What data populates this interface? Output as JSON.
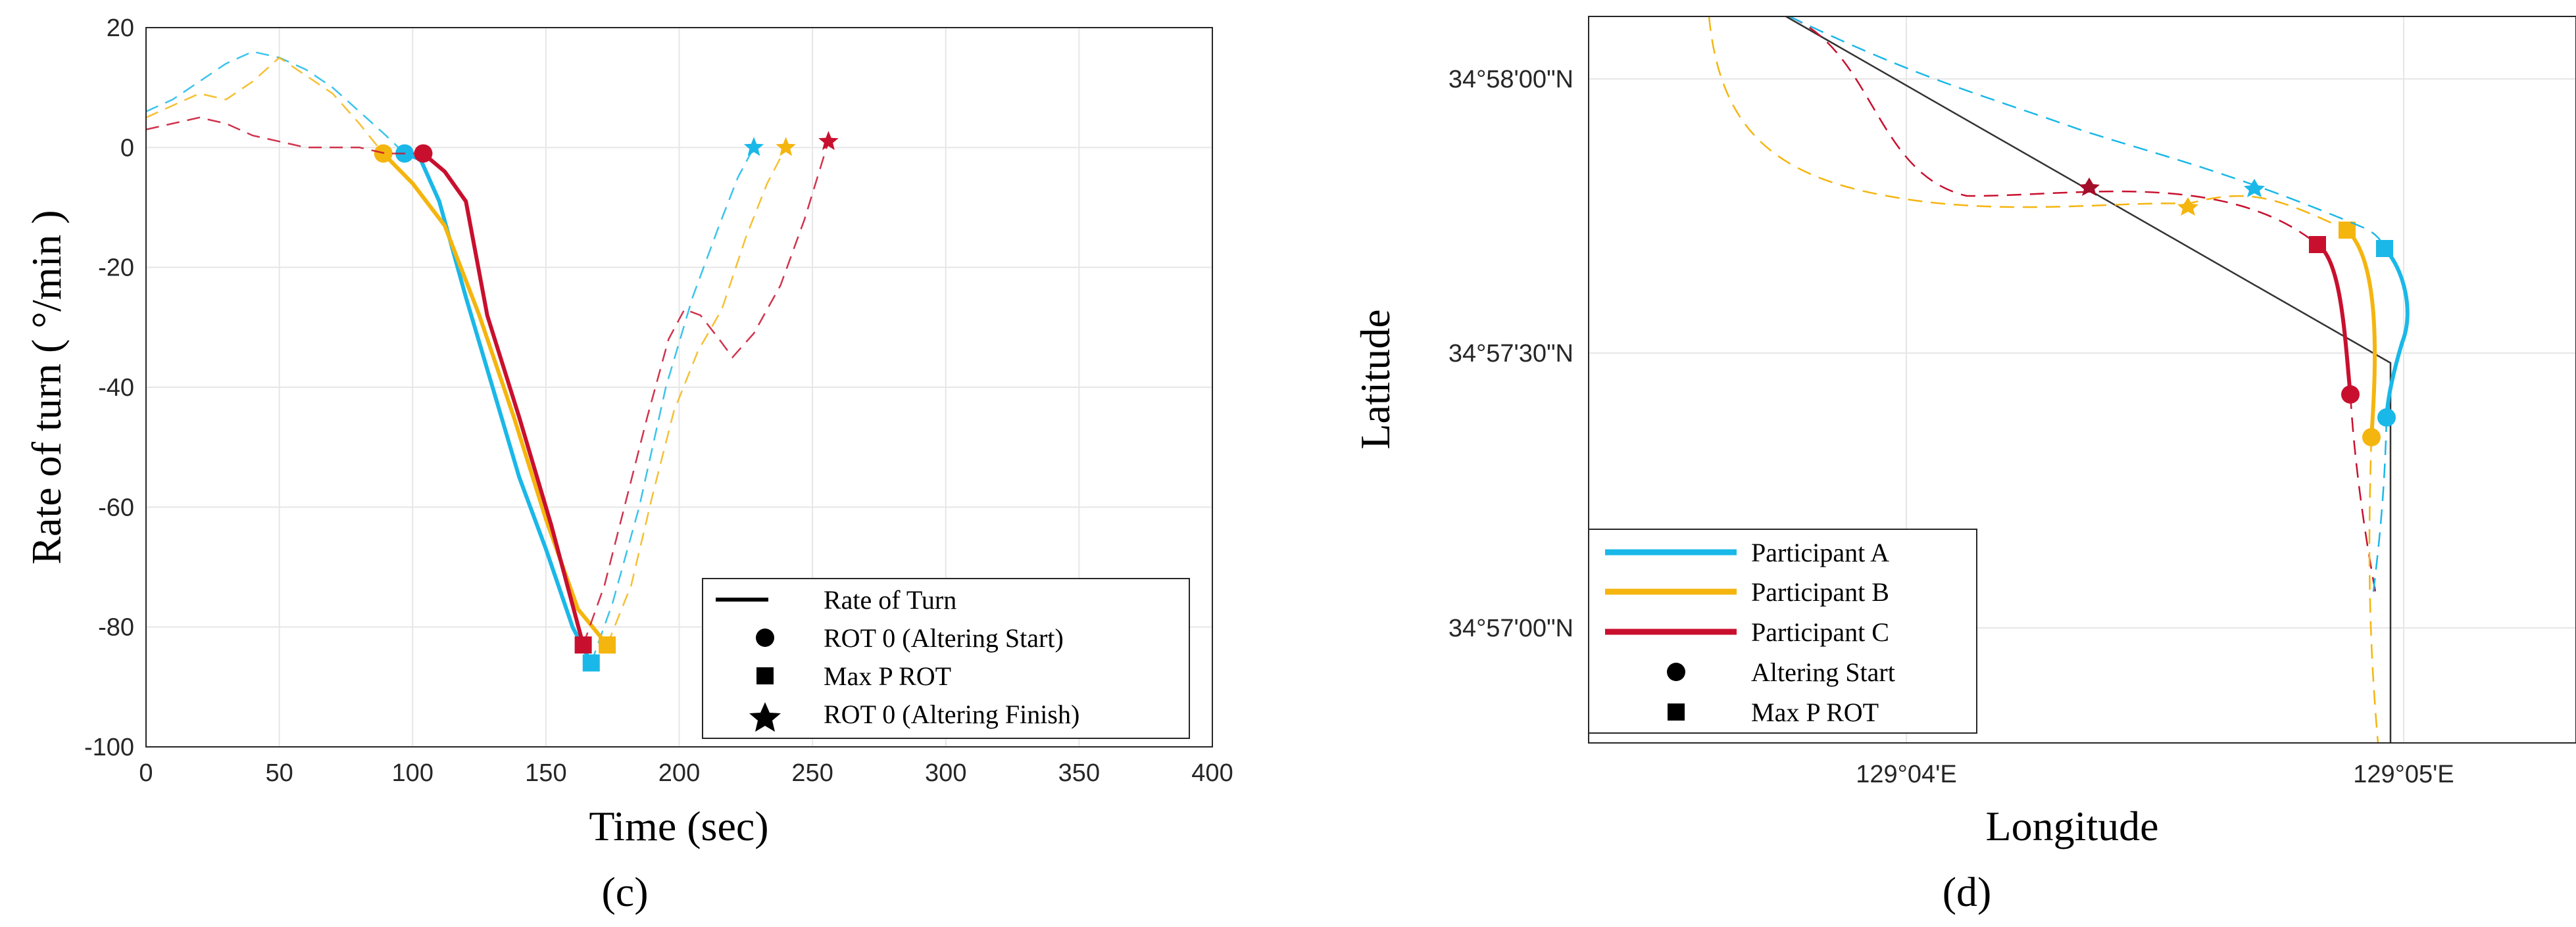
{
  "colors": {
    "participant_a": "#1ab8e8",
    "participant_b": "#f5b50f",
    "participant_c": "#c8102e",
    "route": "#333333",
    "grid": "#e6e6e6"
  },
  "chart_data": [
    {
      "type": "line",
      "panel_label": "(c)",
      "xlabel": "Time (sec)",
      "ylabel": "Rate of turn ( °/min )",
      "xlim": [
        0,
        400
      ],
      "ylim": [
        -100,
        20
      ],
      "xticks": [
        0,
        50,
        100,
        150,
        200,
        250,
        300,
        350,
        400
      ],
      "yticks": [
        20,
        0,
        -20,
        -40,
        -60,
        -80,
        -100
      ],
      "grid": true,
      "legend_position": "bottom-right",
      "legend": [
        {
          "label": "Rate of Turn",
          "marker": "line"
        },
        {
          "label": "ROT 0 (Altering Start)",
          "marker": "circle"
        },
        {
          "label": "Max P ROT",
          "marker": "square"
        },
        {
          "label": "ROT 0 (Altering Finish)",
          "marker": "star"
        }
      ],
      "series": [
        {
          "color_key": "participant_a",
          "dashed_before": [
            [
              0,
              6
            ],
            [
              10,
              8
            ],
            [
              20,
              11
            ],
            [
              30,
              14
            ],
            [
              40,
              16
            ],
            [
              50,
              15
            ],
            [
              60,
              13
            ],
            [
              70,
              10
            ],
            [
              80,
              6
            ],
            [
              90,
              2
            ],
            [
              97,
              -1
            ]
          ],
          "solid": [
            [
              97,
              -1
            ],
            [
              103,
              -2
            ],
            [
              110,
              -9
            ],
            [
              120,
              -25
            ],
            [
              130,
              -40
            ],
            [
              140,
              -55
            ],
            [
              150,
              -67
            ],
            [
              160,
              -80
            ],
            [
              167,
              -86
            ]
          ],
          "dashed_after": [
            [
              167,
              -86
            ],
            [
              175,
              -76
            ],
            [
              185,
              -60
            ],
            [
              195,
              -40
            ],
            [
              205,
              -25
            ],
            [
              215,
              -13
            ],
            [
              222,
              -5
            ],
            [
              228,
              0
            ]
          ],
          "altering_start": [
            97,
            -1
          ],
          "max_p_rot": [
            167,
            -86
          ],
          "altering_finish": [
            228,
            0
          ]
        },
        {
          "color_key": "participant_b",
          "dashed_before": [
            [
              0,
              5
            ],
            [
              10,
              7
            ],
            [
              20,
              9
            ],
            [
              30,
              8
            ],
            [
              40,
              11
            ],
            [
              50,
              15
            ],
            [
              60,
              12
            ],
            [
              70,
              9
            ],
            [
              80,
              4
            ],
            [
              89,
              -1
            ]
          ],
          "solid": [
            [
              89,
              -1
            ],
            [
              100,
              -6
            ],
            [
              112,
              -13
            ],
            [
              125,
              -28
            ],
            [
              138,
              -45
            ],
            [
              150,
              -62
            ],
            [
              162,
              -77
            ],
            [
              173,
              -83
            ]
          ],
          "dashed_after": [
            [
              173,
              -83
            ],
            [
              182,
              -73
            ],
            [
              190,
              -58
            ],
            [
              198,
              -44
            ],
            [
              207,
              -34
            ],
            [
              216,
              -27
            ],
            [
              225,
              -15
            ],
            [
              233,
              -6
            ],
            [
              240,
              0
            ]
          ],
          "altering_start": [
            89,
            -1
          ],
          "max_p_rot": [
            173,
            -83
          ],
          "altering_finish": [
            240,
            0
          ]
        },
        {
          "color_key": "participant_c",
          "dashed_before": [
            [
              0,
              3
            ],
            [
              10,
              4
            ],
            [
              20,
              5
            ],
            [
              30,
              4
            ],
            [
              40,
              2
            ],
            [
              50,
              1
            ],
            [
              60,
              0
            ],
            [
              70,
              0
            ],
            [
              80,
              0
            ],
            [
              90,
              -1
            ],
            [
              104,
              -1
            ]
          ],
          "solid": [
            [
              104,
              -1
            ],
            [
              112,
              -4
            ],
            [
              120,
              -9
            ],
            [
              128,
              -28
            ],
            [
              140,
              -45
            ],
            [
              152,
              -63
            ],
            [
              164,
              -83
            ]
          ],
          "dashed_after": [
            [
              164,
              -83
            ],
            [
              172,
              -73
            ],
            [
              180,
              -59
            ],
            [
              188,
              -45
            ],
            [
              196,
              -32
            ],
            [
              202,
              -27
            ],
            [
              208,
              -28
            ],
            [
              215,
              -32
            ],
            [
              220,
              -35
            ],
            [
              228,
              -31
            ],
            [
              238,
              -23
            ],
            [
              247,
              -12
            ],
            [
              256,
              1
            ]
          ],
          "altering_start": [
            104,
            -1
          ],
          "max_p_rot": [
            164,
            -83
          ],
          "altering_finish": [
            256,
            1
          ]
        }
      ]
    },
    {
      "type": "line",
      "panel_label": "(d)",
      "xlabel": "Longitude",
      "ylabel": "Latitude",
      "xticks": [
        "129°04'E",
        "129°05'E"
      ],
      "yticks": [
        "34°58'00\"N",
        "34°57'30\"N",
        "34°57'00\"N"
      ],
      "grid": true,
      "legend_position": "bottom-left",
      "legend": [
        {
          "label": "Participant A",
          "marker": "line",
          "color_key": "participant_a"
        },
        {
          "label": "Participant B",
          "marker": "line",
          "color_key": "participant_b"
        },
        {
          "label": "Participant C",
          "marker": "line",
          "color_key": "participant_c"
        },
        {
          "label": "Altering Start",
          "marker": "circle"
        },
        {
          "label": "Max P ROT",
          "marker": "square"
        }
      ]
    }
  ]
}
